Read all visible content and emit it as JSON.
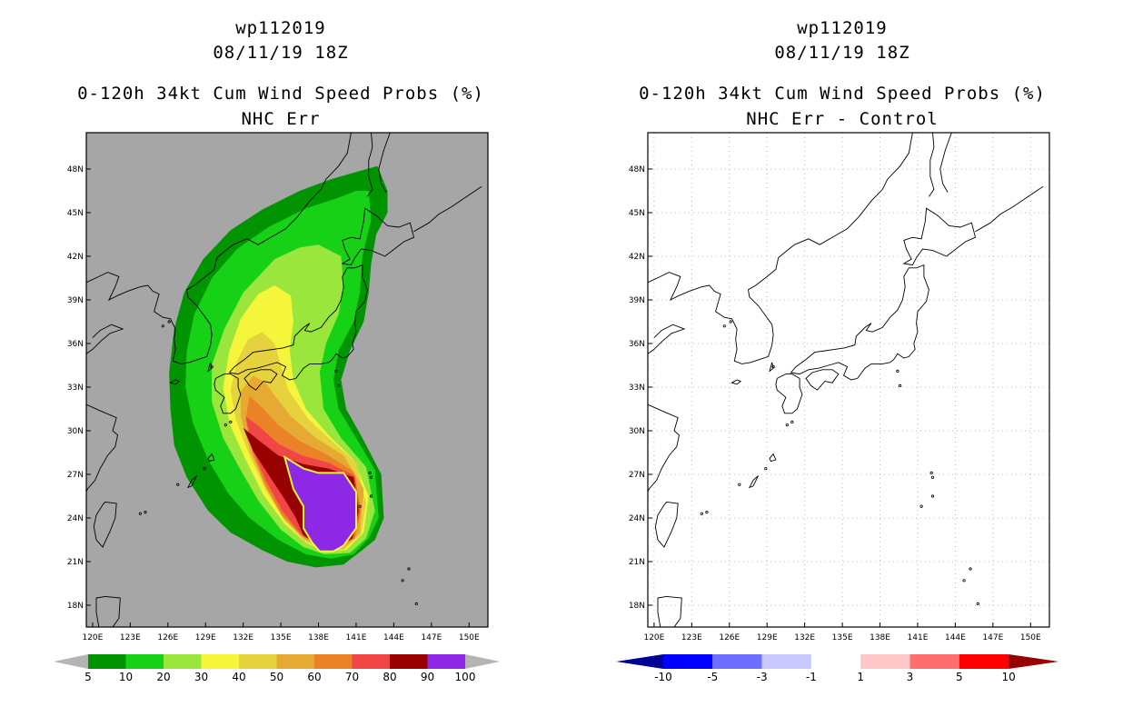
{
  "left": {
    "storm_id": "wp112019",
    "datetime": "08/11/19 18Z",
    "title": "0-120h 34kt Cum Wind Speed Probs (%)",
    "subtitle": "NHC Err"
  },
  "right": {
    "storm_id": "wp112019",
    "datetime": "08/11/19 18Z",
    "title": "0-120h 34kt Cum Wind Speed Probs (%)",
    "subtitle": "NHC Err - Control"
  },
  "axes": {
    "lon_labels": [
      "120E",
      "123E",
      "126E",
      "129E",
      "132E",
      "135E",
      "138E",
      "141E",
      "144E",
      "147E",
      "150E"
    ],
    "lat_labels": [
      "48N",
      "45N",
      "42N",
      "39N",
      "36N",
      "33N",
      "30N",
      "27N",
      "24N",
      "21N",
      "18N"
    ],
    "lon_range": [
      119.5,
      151.5
    ],
    "lat_range": [
      16.5,
      50.5
    ]
  },
  "colorbar_left": {
    "labels": [
      "5",
      "10",
      "20",
      "30",
      "40",
      "50",
      "60",
      "70",
      "80",
      "90",
      "100"
    ],
    "colors": [
      "#009400",
      "#17d117",
      "#9be63c",
      "#f5f53c",
      "#e6d23c",
      "#e6aa32",
      "#eb8228",
      "#f04646",
      "#960000",
      "#8c28e6"
    ],
    "end_color": "#b4b4b4"
  },
  "colorbar_right": {
    "labels": [
      "-10",
      "-5",
      "-3",
      "-1",
      "1",
      "3",
      "5",
      "10"
    ],
    "colors": [
      "#0000ff",
      "#6e6eff",
      "#c8c8ff",
      "#ffffff",
      "#ffc8c8",
      "#ff6e6e",
      "#ff0000"
    ],
    "low_end": "#000096",
    "high_end": "#960000"
  },
  "map_colors": {
    "ocean_gray": "#a6a6a6",
    "grid_dot": "#bbbbbb"
  }
}
